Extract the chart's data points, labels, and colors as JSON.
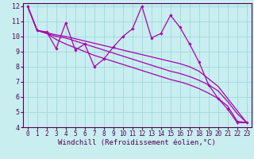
{
  "background_color": "#c8eef0",
  "grid_color": "#a0d8dc",
  "line_color": "#aa00aa",
  "xlim": [
    -0.5,
    23.5
  ],
  "ylim": [
    4,
    12.2
  ],
  "xlabel": "Windchill (Refroidissement éolien,°C)",
  "xlabel_fontsize": 6.5,
  "tick_fontsize": 6,
  "xticks": [
    0,
    1,
    2,
    3,
    4,
    5,
    6,
    7,
    8,
    9,
    10,
    11,
    12,
    13,
    14,
    15,
    16,
    17,
    18,
    19,
    20,
    21,
    22,
    23
  ],
  "yticks": [
    4,
    5,
    6,
    7,
    8,
    9,
    10,
    11,
    12
  ],
  "line1": {
    "x": [
      0,
      1,
      2,
      3,
      4,
      5,
      6,
      7,
      8,
      9,
      10,
      11,
      12,
      13,
      14,
      15,
      16,
      17,
      18,
      19,
      20,
      21,
      22,
      23
    ],
    "y": [
      12.0,
      10.4,
      10.3,
      9.2,
      10.9,
      9.1,
      9.5,
      8.0,
      8.5,
      9.3,
      10.0,
      10.5,
      12.0,
      9.9,
      10.2,
      11.4,
      10.6,
      9.5,
      8.3,
      6.8,
      5.9,
      5.2,
      4.3,
      4.3
    ]
  },
  "line2": {
    "x": [
      0,
      1,
      2,
      3,
      4,
      5,
      6,
      7,
      8,
      9,
      10,
      11,
      12,
      13,
      14,
      15,
      16,
      17,
      18,
      19,
      20,
      21,
      22,
      23
    ],
    "y": [
      12.0,
      10.4,
      10.25,
      10.1,
      10.0,
      9.85,
      9.7,
      9.55,
      9.4,
      9.25,
      9.1,
      8.95,
      8.8,
      8.65,
      8.5,
      8.35,
      8.2,
      8.0,
      7.7,
      7.2,
      6.7,
      5.9,
      5.1,
      4.3
    ]
  },
  "line3": {
    "x": [
      0,
      1,
      2,
      3,
      4,
      5,
      6,
      7,
      8,
      9,
      10,
      11,
      12,
      13,
      14,
      15,
      16,
      17,
      18,
      19,
      20,
      21,
      22,
      23
    ],
    "y": [
      12.0,
      10.4,
      10.2,
      9.8,
      9.5,
      9.25,
      9.0,
      8.75,
      8.55,
      8.35,
      8.15,
      7.95,
      7.75,
      7.55,
      7.35,
      7.15,
      7.0,
      6.8,
      6.55,
      6.25,
      5.9,
      5.4,
      4.4,
      4.3
    ]
  },
  "line4": {
    "x": [
      0,
      1,
      2,
      3,
      4,
      5,
      6,
      7,
      8,
      9,
      10,
      11,
      12,
      13,
      14,
      15,
      16,
      17,
      18,
      19,
      20,
      21,
      22,
      23
    ],
    "y": [
      12.0,
      10.4,
      10.2,
      10.0,
      9.9,
      9.7,
      9.5,
      9.3,
      9.1,
      8.9,
      8.7,
      8.5,
      8.3,
      8.1,
      7.9,
      7.7,
      7.55,
      7.35,
      7.1,
      6.8,
      6.4,
      5.7,
      4.9,
      4.3
    ]
  }
}
